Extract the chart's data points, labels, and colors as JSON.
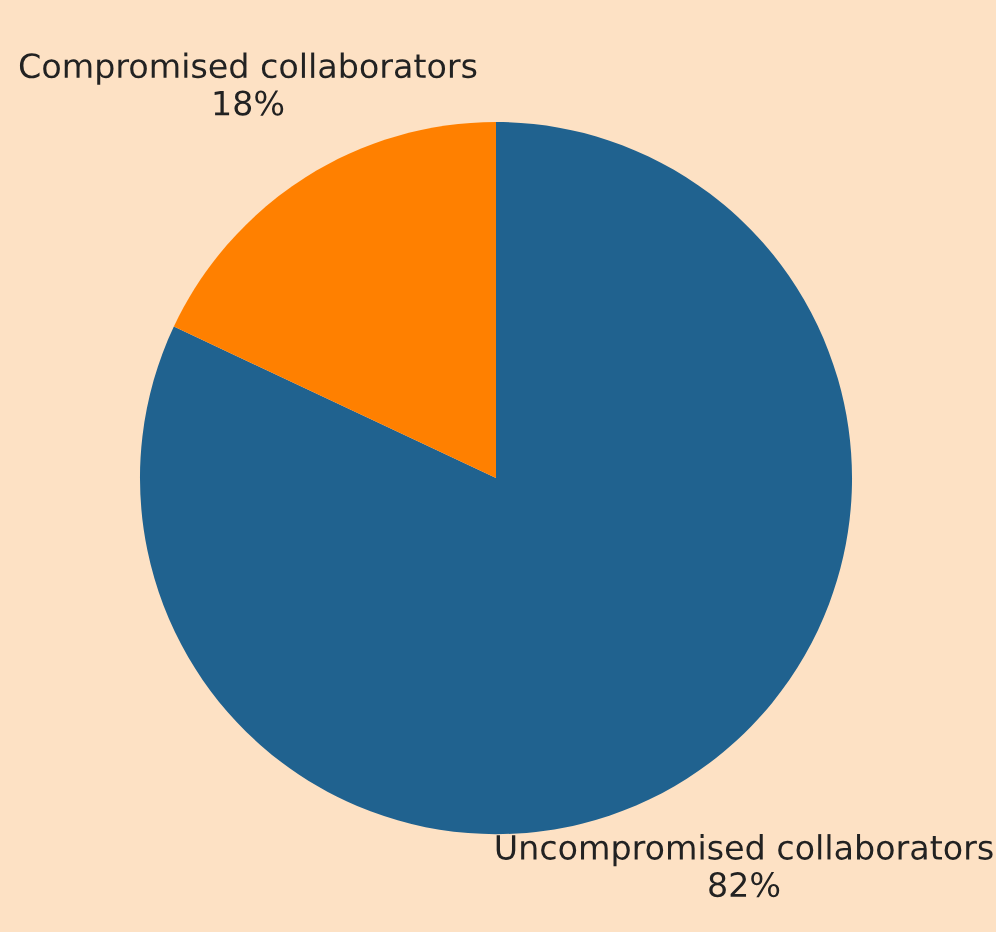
{
  "chart_data": {
    "type": "pie",
    "categories": [
      "Uncompromised collaborators",
      "Compromised collaborators"
    ],
    "values": [
      82,
      18
    ],
    "value_labels": [
      "82%",
      "18%"
    ],
    "colors": [
      "#20628f",
      "#ff8000"
    ]
  }
}
